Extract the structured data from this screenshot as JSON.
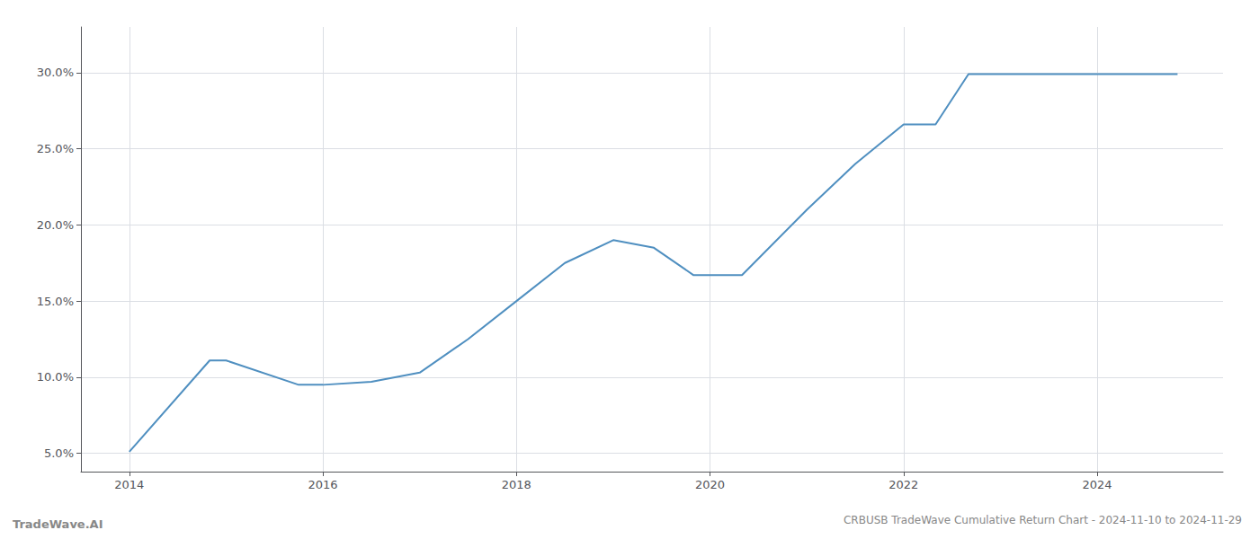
{
  "chart_data": {
    "type": "line",
    "title": "CRBUSB TradeWave Cumulative Return Chart - 2024-11-10 to 2024-11-29",
    "annotations": [
      "TradeWave.AI"
    ],
    "x": [
      2014.0,
      2014.83,
      2015.0,
      2015.75,
      2016.0,
      2016.5,
      2017.0,
      2017.5,
      2018.0,
      2018.5,
      2019.0,
      2019.42,
      2019.83,
      2020.0,
      2020.33,
      2021.0,
      2021.5,
      2022.0,
      2022.33,
      2022.67,
      2023.0,
      2023.5,
      2024.0,
      2024.83
    ],
    "values": [
      5.1,
      11.1,
      11.1,
      9.5,
      9.5,
      9.7,
      10.3,
      12.5,
      15.0,
      17.5,
      19.0,
      18.5,
      16.7,
      16.7,
      16.7,
      21.0,
      24.0,
      26.6,
      26.6,
      29.9,
      29.9,
      29.9,
      29.9,
      29.9
    ],
    "color": "#4f8fc0",
    "xlim": [
      2013.5,
      2025.3
    ],
    "xticks": [
      2014,
      2016,
      2018,
      2020,
      2022,
      2024
    ],
    "ylim": [
      3.8,
      33.0
    ],
    "yticks": [
      {
        "value": 5.0,
        "label": "5.0%"
      },
      {
        "value": 10.0,
        "label": "10.0%"
      },
      {
        "value": 15.0,
        "label": "15.0%"
      },
      {
        "value": 20.0,
        "label": "20.0%"
      },
      {
        "value": 25.0,
        "label": "25.0%"
      },
      {
        "value": 30.0,
        "label": "30.0%"
      }
    ],
    "grid": true
  }
}
